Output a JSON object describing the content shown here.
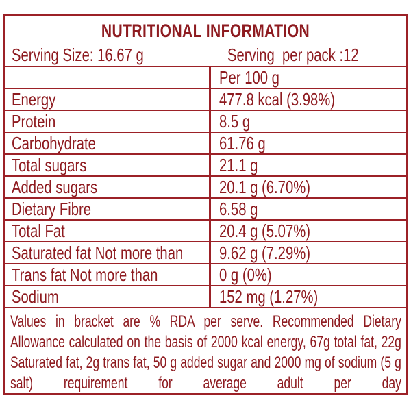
{
  "colors": {
    "text": "#8e1b20",
    "line": "#9c2127",
    "background": "#ffffff"
  },
  "header": {
    "title": "NUTRITIONAL INFORMATION",
    "serving_size": "Serving Size: 16.67 g",
    "serving_per_pack": "Serving  per pack :12"
  },
  "table": {
    "column_header": "Per 100 g",
    "rows": [
      {
        "label": "Energy",
        "value": "477.8 kcal (3.98%)"
      },
      {
        "label": "Protein",
        "value": "8.5 g"
      },
      {
        "label": "Carbohydrate",
        "value": "61.76 g"
      },
      {
        "label": "Total sugars",
        "value": "21.1 g"
      },
      {
        "label": "Added sugars",
        "value": "20.1 g (6.70%)"
      },
      {
        "label": "Dietary Fibre",
        "value": "6.58 g"
      },
      {
        "label": "Total Fat",
        "value": "20.4 g (5.07%)"
      },
      {
        "label": "Saturated fat Not more than",
        "value": "9.62 g (7.29%)"
      },
      {
        "label": "Trans fat Not more than",
        "value": "0 g (0%)"
      },
      {
        "label": "Sodium",
        "value": "152 mg (1.27%)"
      }
    ]
  },
  "footnote": "Values in bracket are % RDA per serve. Recommended Dietary Allowance calculated on the basis of 2000 kcal energy, 67g total fat, 22g Saturated fat, 2g trans fat, 50 g added sugar and 2000 mg of sodium (5 g salt) requirement for average adult per day"
}
